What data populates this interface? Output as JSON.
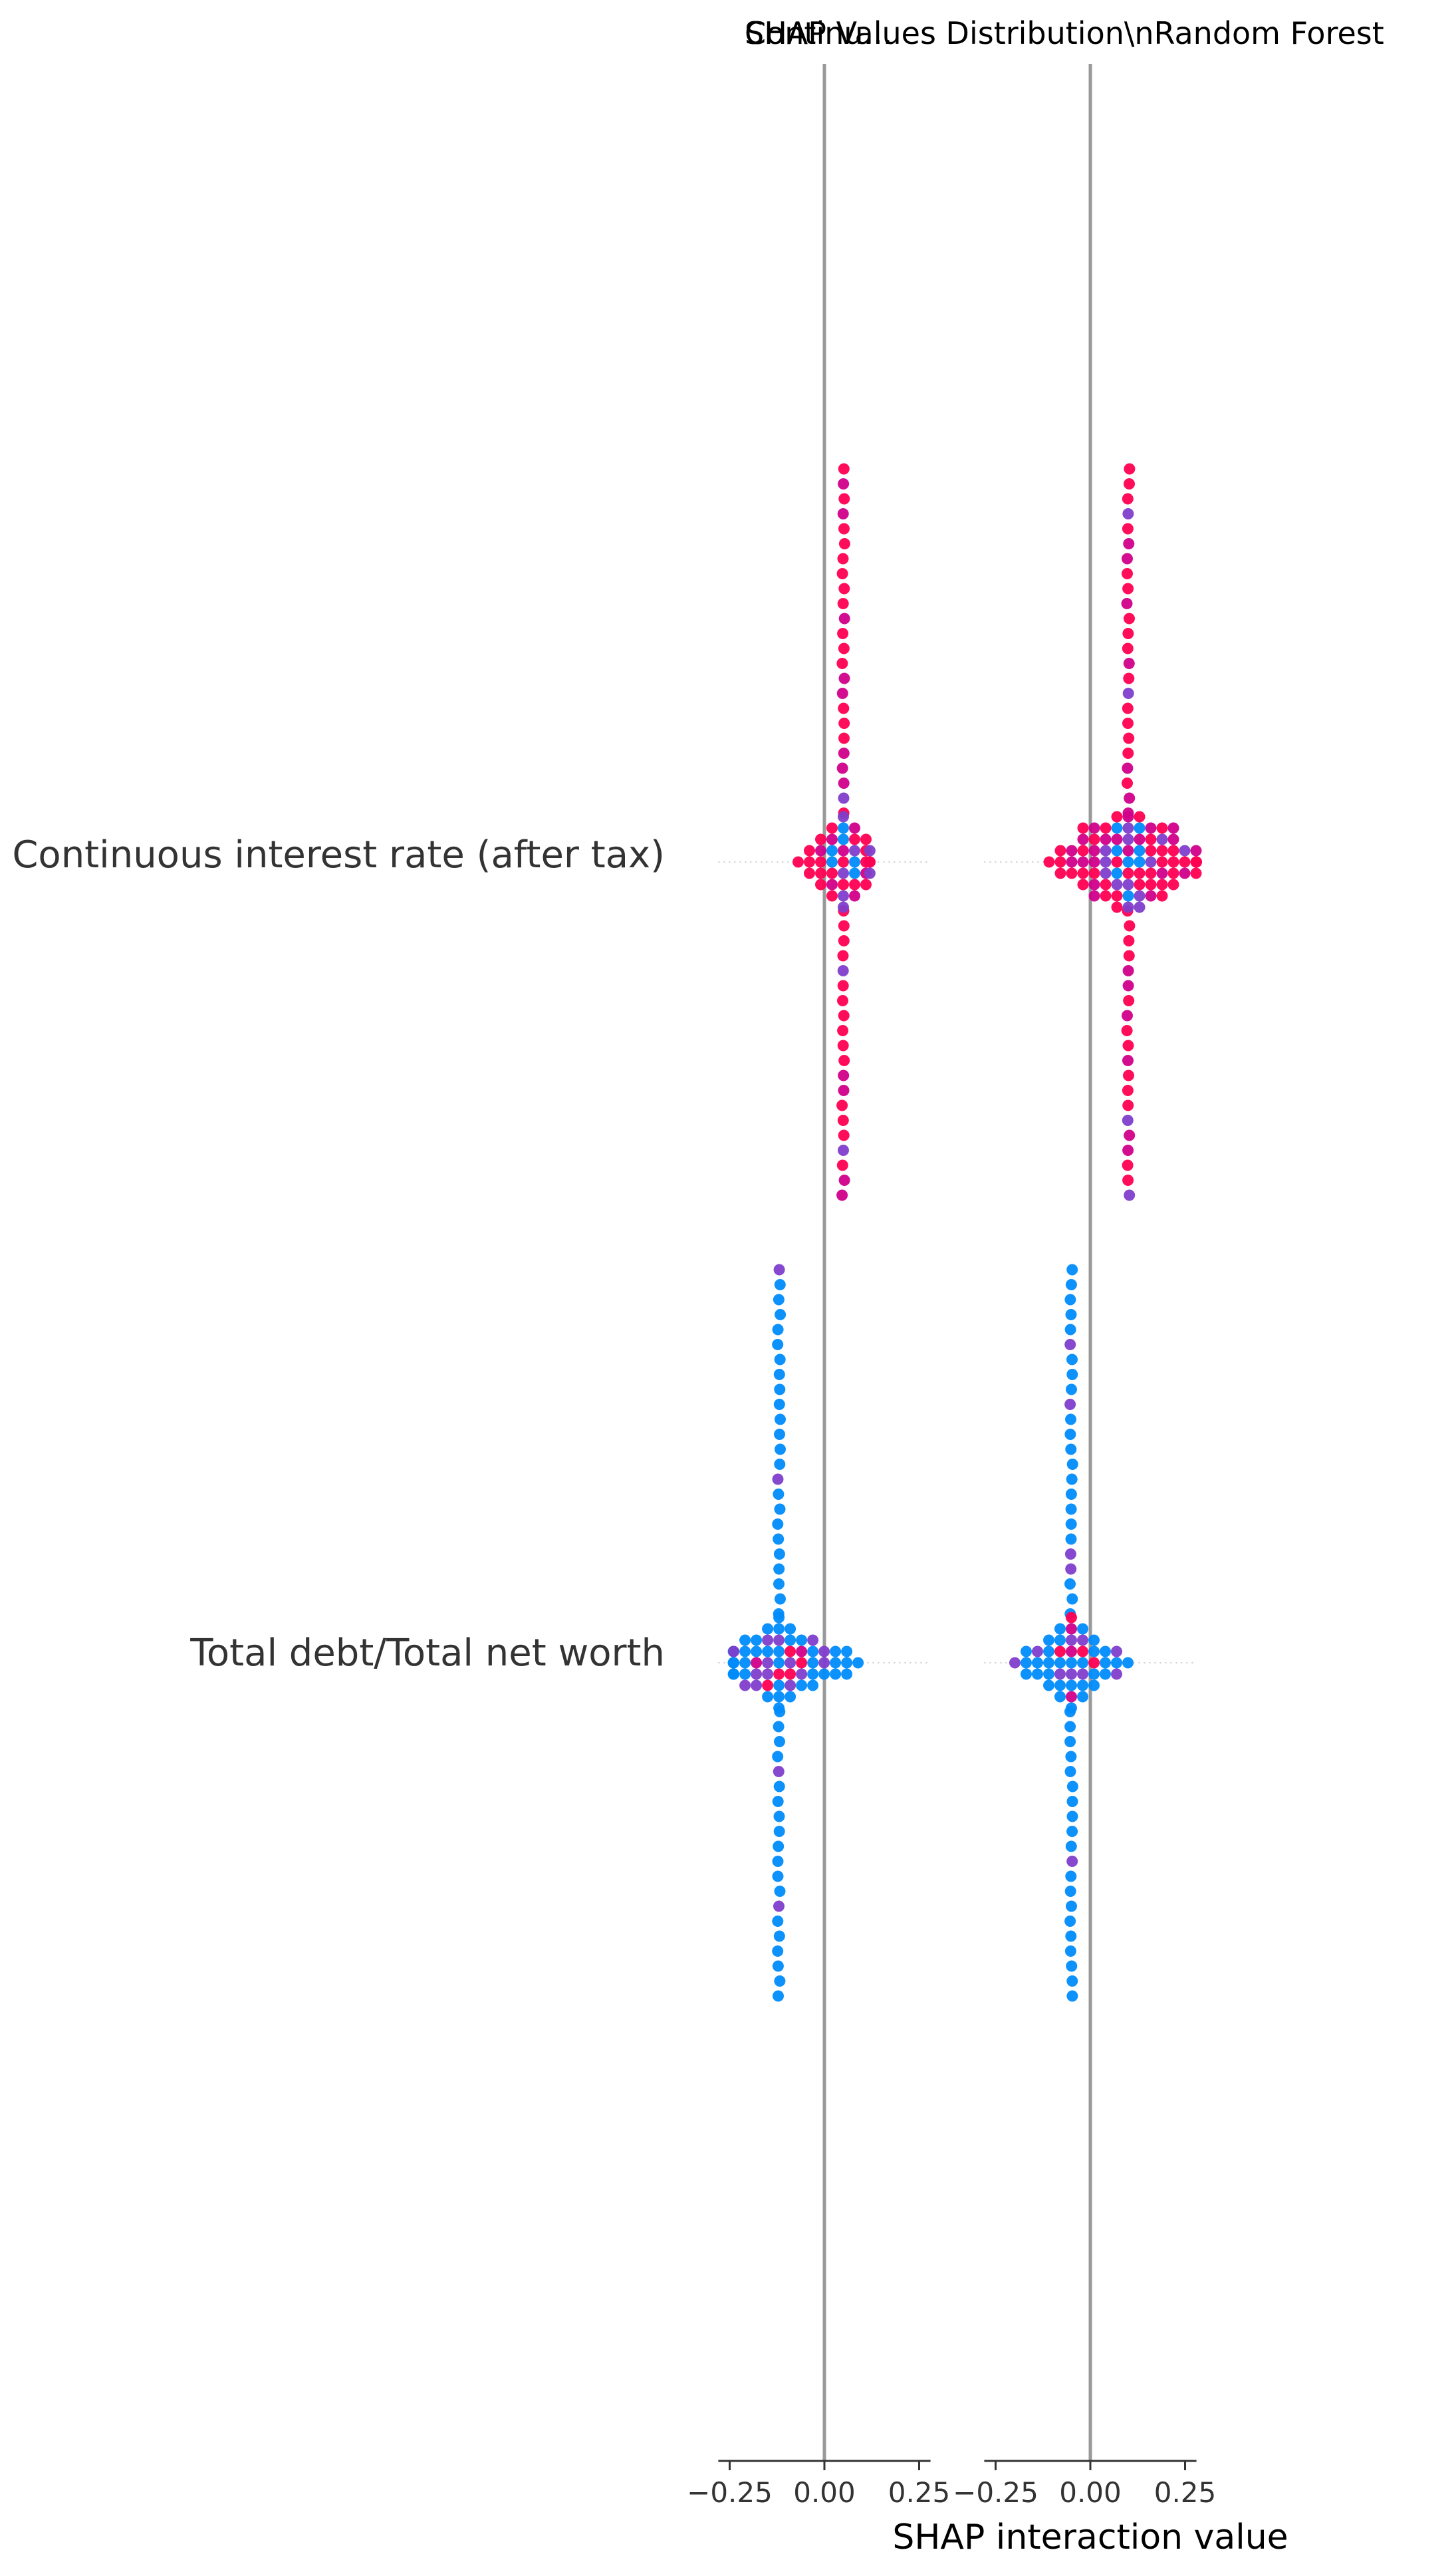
{
  "figure": {
    "titles_overlapping": [
      "SHAP Values Distribution\\nRandom Forest",
      "Continu..."
    ],
    "xlabel": "SHAP interaction value"
  },
  "chart_data": {
    "type": "scatter",
    "subtype": "shap-interaction-beeswarm",
    "features": [
      "Continuous interest rate (after tax)",
      "Total debt/Total net worth"
    ],
    "panels": [
      {
        "x_ticks": [
          -0.25,
          0.0,
          0.25
        ],
        "x_tick_labels": [
          "−0.25",
          "0.00",
          "0.25"
        ],
        "xlim": [
          -0.28,
          0.28
        ],
        "zero_line": true
      },
      {
        "x_ticks": [
          -0.25,
          0.0,
          0.25
        ],
        "x_tick_labels": [
          "−0.25",
          "0.00",
          "0.25"
        ],
        "xlim": [
          -0.28,
          0.28
        ],
        "zero_line": true
      }
    ],
    "clusters": [
      {
        "panel": 0,
        "feature": 0,
        "center": 0.05,
        "core_range": [
          -0.08,
          0.12
        ],
        "core_counts": [
          1,
          3,
          5,
          7,
          9,
          7,
          5,
          3,
          1
        ],
        "spine_x": 0.05,
        "spine_points_above": 24,
        "spine_points_below": 20,
        "scheme": "high"
      },
      {
        "panel": 1,
        "feature": 0,
        "center": 0.1,
        "core_range": [
          -0.15,
          0.28
        ],
        "core_counts": [
          3,
          9,
          9,
          13,
          15,
          13,
          9,
          7,
          3
        ],
        "spine_x": 0.1,
        "spine_points_above": 24,
        "spine_points_below": 20,
        "scheme": "high"
      },
      {
        "panel": 0,
        "feature": 1,
        "center": -0.12,
        "core_range": [
          -0.24,
          0.17
        ],
        "core_counts": [
          1,
          3,
          7,
          13,
          15,
          13,
          7,
          3,
          1
        ],
        "spine_x": -0.12,
        "spine_points_above": 24,
        "spine_points_below": 20,
        "scheme": "low"
      },
      {
        "panel": 1,
        "feature": 1,
        "center": -0.05,
        "core_range": [
          -0.2,
          0.1
        ],
        "core_counts": [
          1,
          3,
          5,
          9,
          11,
          9,
          5,
          3,
          1
        ],
        "spine_x": -0.05,
        "spine_points_above": 24,
        "spine_points_below": 20,
        "scheme": "low"
      }
    ],
    "colors": {
      "low": "#008bfb",
      "high": "#ff0051",
      "mid": "#7f3ecb",
      "magenta": "#d0008a",
      "zero_line": "#999999",
      "axis": "#333333",
      "label_text": "#333333",
      "grid_dotted": "#cccccc"
    }
  }
}
